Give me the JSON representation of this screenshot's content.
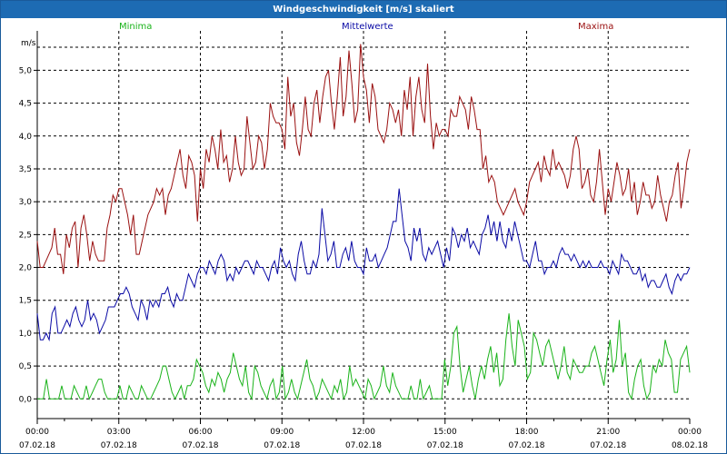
{
  "window": {
    "title": "Windgeschwindigkeit [m/s] skaliert"
  },
  "colors": {
    "minima": "#1ab31a",
    "mittel": "#0a0aa5",
    "maxima": "#9a1010",
    "titlebar": "#1d6bb3"
  },
  "chart_data": {
    "type": "line",
    "title": "Windgeschwindigkeit [m/s] skaliert",
    "ylabel": "m/s",
    "ylim": [
      -0.3,
      5.6
    ],
    "yticks": [
      "0,0",
      "0,5",
      "1,0",
      "1,5",
      "2,0",
      "2,5",
      "3,0",
      "3,5",
      "4,0",
      "4,5",
      "5,0"
    ],
    "xlim": [
      0,
      24
    ],
    "xticks": [
      {
        "time": "00:00",
        "date": "07.02.18"
      },
      {
        "time": "03:00",
        "date": "07.02.18"
      },
      {
        "time": "06:00",
        "date": "07.02.18"
      },
      {
        "time": "09:00",
        "date": "07.02.18"
      },
      {
        "time": "12:00",
        "date": "07.02.18"
      },
      {
        "time": "15:00",
        "date": "07.02.18"
      },
      {
        "time": "18:00",
        "date": "07.02.18"
      },
      {
        "time": "21:00",
        "date": "07.02.18"
      },
      {
        "time": "00:00",
        "date": "08.02.18"
      }
    ],
    "grid": true,
    "legend_position": "top",
    "series": [
      {
        "name": "Minima",
        "color": "#1ab31a",
        "values": [
          0.0,
          0.0,
          0.0,
          0.3,
          0.0,
          0.0,
          0.0,
          0.0,
          0.2,
          0.0,
          0.0,
          0.0,
          0.2,
          0.1,
          0.0,
          0.0,
          0.2,
          0.0,
          0.1,
          0.2,
          0.3,
          0.3,
          0.1,
          0.0,
          0.0,
          0.0,
          0.0,
          0.2,
          0.0,
          0.0,
          0.2,
          0.1,
          0.0,
          0.0,
          0.2,
          0.1,
          0.0,
          0.0,
          0.1,
          0.2,
          0.3,
          0.5,
          0.5,
          0.3,
          0.1,
          0.0,
          0.1,
          0.2,
          0.0,
          0.2,
          0.2,
          0.3,
          0.6,
          0.5,
          0.4,
          0.2,
          0.1,
          0.3,
          0.2,
          0.4,
          0.3,
          0.1,
          0.3,
          0.4,
          0.7,
          0.5,
          0.3,
          0.2,
          0.5,
          0.1,
          0.0,
          0.5,
          0.4,
          0.2,
          0.1,
          0.0,
          0.2,
          0.3,
          0.0,
          0.1,
          0.5,
          0.0,
          0.1,
          0.3,
          0.1,
          0.0,
          0.2,
          0.4,
          0.6,
          0.3,
          0.2,
          0.0,
          0.1,
          0.3,
          0.2,
          0.1,
          0.0,
          0.2,
          0.1,
          0.3,
          0.0,
          0.1,
          0.5,
          0.2,
          0.3,
          0.2,
          0.1,
          0.0,
          0.3,
          0.2,
          0.0,
          0.1,
          0.2,
          0.5,
          0.2,
          0.1,
          0.4,
          0.2,
          0.1,
          0.0,
          0.0,
          0.0,
          0.2,
          0.0,
          0.0,
          0.3,
          0.0,
          0.1,
          0.2,
          0.0,
          0.0,
          0.0,
          0.0,
          0.6,
          0.2,
          0.5,
          1.0,
          1.1,
          0.5,
          0.1,
          0.3,
          0.5,
          0.2,
          0.0,
          0.3,
          0.5,
          0.3,
          0.6,
          0.8,
          0.4,
          0.7,
          0.2,
          0.3,
          0.9,
          1.3,
          0.8,
          0.5,
          1.2,
          1.0,
          0.8,
          0.3,
          0.4,
          1.0,
          0.9,
          0.7,
          0.5,
          0.8,
          0.9,
          0.7,
          0.5,
          0.3,
          0.5,
          0.8,
          0.4,
          0.3,
          0.6,
          0.5,
          0.4,
          0.4,
          0.5,
          0.5,
          0.7,
          0.8,
          0.6,
          0.4,
          0.2,
          0.6,
          0.9,
          0.4,
          0.6,
          1.2,
          0.5,
          0.7,
          0.1,
          0.0,
          0.3,
          0.5,
          0.6,
          0.2,
          0.0,
          0.1,
          0.5,
          0.4,
          0.6,
          0.5,
          0.9,
          0.7,
          0.6,
          0.1,
          0.1,
          0.6,
          0.7,
          0.8,
          0.4
        ]
      },
      {
        "name": "Mittelwerte",
        "color": "#0a0aa5",
        "values": [
          1.3,
          0.9,
          0.9,
          1.0,
          0.9,
          1.3,
          1.4,
          1.0,
          1.0,
          1.1,
          1.2,
          1.1,
          1.3,
          1.4,
          1.2,
          1.1,
          1.2,
          1.5,
          1.2,
          1.3,
          1.2,
          1.0,
          1.1,
          1.2,
          1.4,
          1.4,
          1.4,
          1.5,
          1.6,
          1.6,
          1.7,
          1.6,
          1.4,
          1.3,
          1.2,
          1.5,
          1.4,
          1.2,
          1.5,
          1.4,
          1.5,
          1.4,
          1.6,
          1.6,
          1.7,
          1.5,
          1.4,
          1.6,
          1.5,
          1.5,
          1.7,
          1.9,
          1.8,
          1.7,
          1.9,
          2.0,
          2.0,
          1.9,
          2.1,
          2.0,
          1.9,
          2.1,
          2.2,
          2.1,
          1.8,
          1.9,
          1.8,
          2.0,
          1.9,
          2.0,
          2.1,
          2.1,
          2.0,
          1.9,
          2.1,
          2.0,
          2.0,
          1.9,
          1.8,
          2.0,
          2.1,
          1.9,
          2.3,
          2.1,
          2.0,
          2.1,
          1.9,
          1.8,
          2.2,
          2.4,
          2.1,
          1.9,
          1.9,
          2.1,
          2.0,
          2.2,
          2.9,
          2.5,
          2.1,
          2.2,
          2.4,
          2.0,
          2.0,
          2.2,
          2.3,
          2.1,
          2.4,
          2.1,
          2.0,
          2.0,
          1.9,
          2.3,
          2.1,
          2.1,
          2.2,
          2.0,
          2.1,
          2.2,
          2.3,
          2.5,
          2.7,
          2.7,
          3.2,
          2.8,
          2.4,
          2.3,
          2.1,
          2.6,
          2.4,
          2.6,
          2.2,
          2.1,
          2.3,
          2.2,
          2.3,
          2.4,
          2.2,
          2.0,
          2.3,
          2.1,
          2.6,
          2.5,
          2.3,
          2.5,
          2.4,
          2.6,
          2.3,
          2.4,
          2.3,
          2.2,
          2.5,
          2.6,
          2.8,
          2.5,
          2.7,
          2.4,
          2.7,
          2.4,
          2.3,
          2.6,
          2.4,
          2.7,
          2.5,
          2.3,
          2.1,
          2.1,
          2.0,
          2.2,
          2.4,
          2.1,
          2.1,
          1.9,
          2.0,
          2.0,
          2.1,
          2.0,
          2.2,
          2.3,
          2.2,
          2.2,
          2.1,
          2.2,
          2.1,
          2.0,
          2.1,
          2.0,
          2.1,
          2.0,
          2.0,
          2.0,
          2.1,
          2.0,
          2.0,
          1.9,
          2.1,
          2.0,
          1.9,
          2.2,
          2.1,
          2.1,
          2.0,
          1.9,
          1.9,
          2.0,
          1.8,
          1.9,
          1.7,
          1.8,
          1.8,
          1.7,
          1.7,
          1.8,
          1.9,
          1.7,
          1.6,
          1.8,
          1.9,
          1.8,
          1.9,
          1.9,
          2.0
        ]
      },
      {
        "name": "Maxima",
        "color": "#9a1010",
        "values": [
          2.4,
          2.0,
          2.0,
          2.1,
          2.2,
          2.3,
          2.6,
          2.2,
          2.2,
          1.9,
          2.5,
          2.3,
          2.6,
          2.7,
          2.0,
          2.6,
          2.8,
          2.5,
          2.1,
          2.4,
          2.2,
          2.1,
          2.1,
          2.1,
          2.6,
          2.8,
          3.1,
          3.0,
          3.2,
          3.2,
          3.0,
          2.8,
          2.5,
          2.8,
          2.2,
          2.2,
          2.4,
          2.6,
          2.8,
          2.9,
          3.0,
          3.2,
          3.1,
          3.2,
          2.8,
          3.1,
          3.2,
          3.4,
          3.6,
          3.8,
          3.4,
          3.2,
          3.7,
          3.6,
          3.4,
          2.7,
          3.5,
          3.2,
          3.8,
          3.6,
          4.0,
          3.8,
          3.5,
          4.1,
          3.6,
          3.7,
          3.3,
          3.5,
          4.0,
          3.6,
          3.4,
          3.5,
          4.3,
          3.9,
          3.5,
          3.6,
          4.0,
          3.9,
          3.5,
          3.8,
          4.5,
          4.3,
          4.2,
          4.2,
          4.1,
          3.8,
          4.9,
          4.3,
          4.5,
          3.9,
          3.7,
          4.1,
          4.6,
          4.1,
          4.0,
          4.5,
          4.7,
          4.2,
          4.6,
          4.9,
          5.0,
          4.5,
          4.1,
          4.6,
          5.2,
          4.3,
          4.6,
          5.3,
          4.8,
          4.2,
          4.4,
          5.4,
          4.9,
          4.7,
          4.2,
          4.8,
          4.6,
          4.1,
          4.0,
          3.9,
          4.1,
          4.5,
          4.4,
          4.2,
          4.4,
          4.0,
          4.7,
          4.4,
          4.9,
          4.0,
          4.6,
          4.9,
          4.4,
          4.2,
          5.1,
          4.3,
          3.8,
          4.2,
          4.0,
          4.1,
          4.1,
          4.0,
          4.4,
          4.3,
          4.3,
          4.6,
          4.5,
          4.4,
          4.1,
          4.6,
          4.4,
          4.1,
          4.1,
          3.5,
          3.7,
          3.3,
          3.4,
          3.3,
          3.0,
          2.9,
          2.8,
          2.9,
          3.0,
          3.1,
          3.2,
          3.0,
          2.9,
          2.8,
          3.0,
          3.3,
          3.4,
          3.5,
          3.6,
          3.3,
          3.7,
          3.5,
          3.4,
          3.8,
          3.5,
          3.6,
          3.5,
          3.4,
          3.2,
          3.4,
          3.8,
          4.0,
          3.8,
          3.2,
          3.3,
          3.5,
          3.1,
          3.0,
          3.3,
          3.8,
          3.3,
          2.8,
          3.2,
          3.0,
          3.3,
          3.6,
          3.4,
          3.1,
          3.2,
          3.5,
          3.0,
          3.3,
          2.8,
          3.0,
          3.3,
          3.1,
          3.1,
          2.9,
          3.0,
          3.4,
          3.1,
          2.9,
          2.7,
          3.0,
          3.1,
          3.4,
          3.6,
          2.9,
          3.2,
          3.6,
          3.8
        ]
      }
    ]
  }
}
